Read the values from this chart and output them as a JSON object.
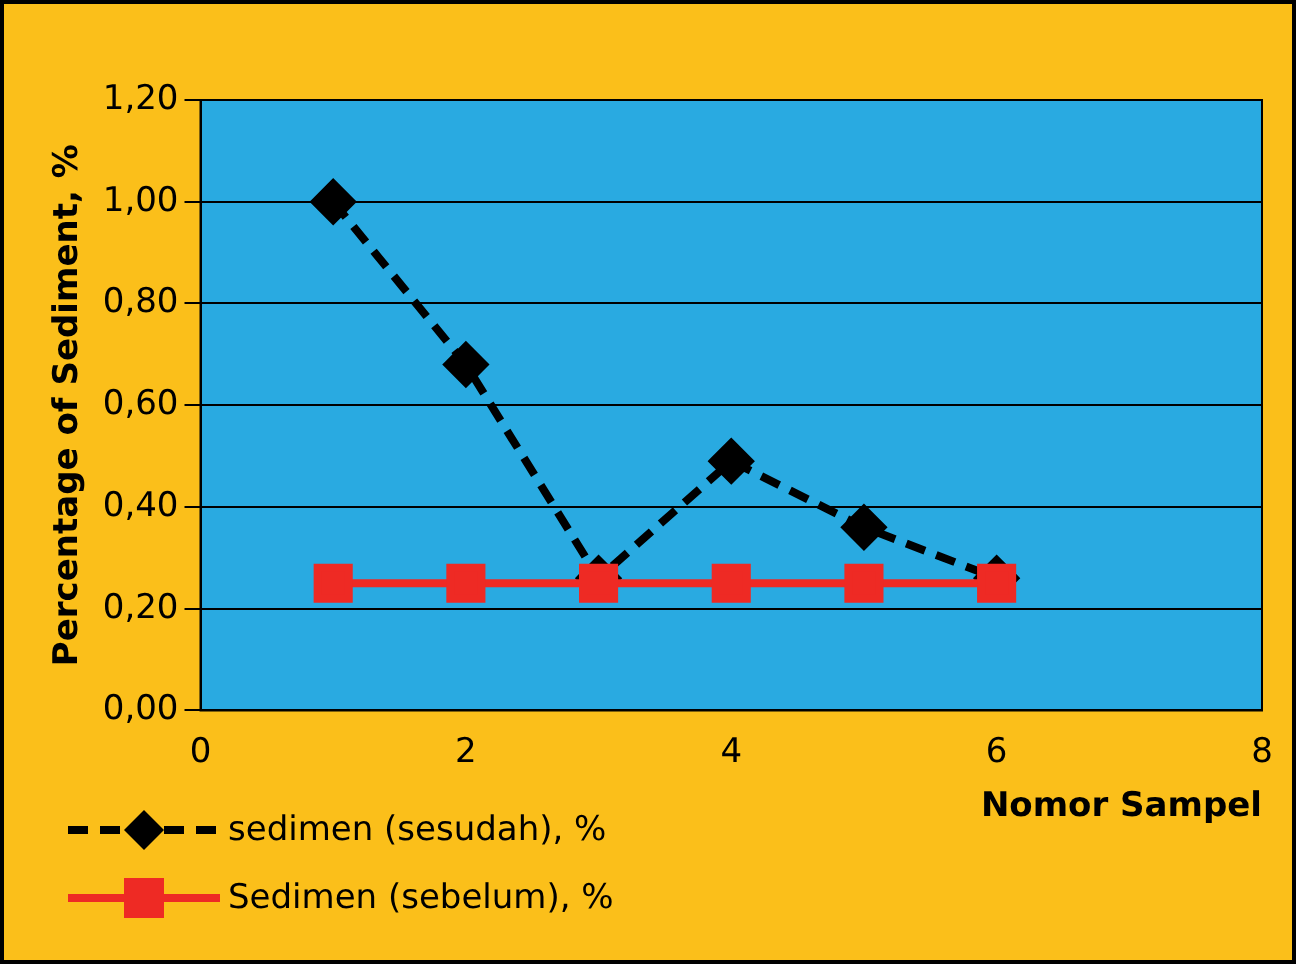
{
  "chart_data": {
    "type": "line",
    "xlabel": "Nomor Sampel",
    "ylabel": "Percentage of Sediment, %",
    "x": [
      1,
      2,
      3,
      4,
      5,
      6
    ],
    "series": [
      {
        "name": "sedimen (sesudah), %",
        "color": "#000000",
        "values": [
          1.0,
          0.68,
          0.26,
          0.49,
          0.36,
          0.26
        ],
        "marker": "diamond",
        "line_style": "dashed"
      },
      {
        "name": "Sedimen (sebelum), %",
        "color": "#ee2a24",
        "values": [
          0.25,
          0.25,
          0.25,
          0.25,
          0.25,
          0.25
        ],
        "marker": "square",
        "line_style": "solid"
      }
    ],
    "xlim": [
      0,
      8
    ],
    "xticks": [
      0,
      2,
      4,
      6,
      8
    ],
    "ylim": [
      0,
      1.2
    ],
    "yticks": [
      {
        "value": 0,
        "label": "0,00"
      },
      {
        "value": 0.2,
        "label": "0,20"
      },
      {
        "value": 0.4,
        "label": "0,40"
      },
      {
        "value": 0.6,
        "label": "0,60"
      },
      {
        "value": 0.8,
        "label": "0,80"
      },
      {
        "value": 1.0,
        "label": "1,00"
      },
      {
        "value": 1.2,
        "label": "1,20"
      }
    ],
    "grid": "y",
    "legend": "bottom left"
  }
}
